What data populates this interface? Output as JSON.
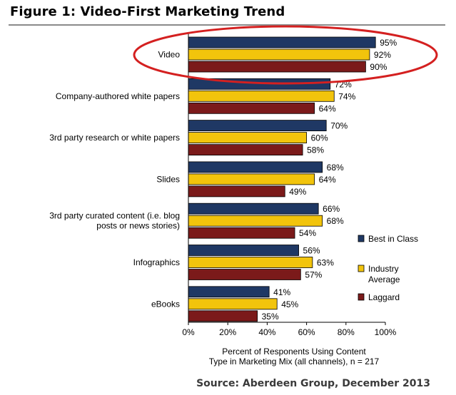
{
  "figure_title": "Figure 1: Video-First Marketing Trend",
  "source": "Source: Aberdeen Group, December 2013",
  "chart_data": {
    "type": "bar",
    "orientation": "horizontal",
    "categories": [
      "Video",
      "Company-authored white papers",
      "3rd party research or white papers",
      "Slides",
      "3rd party curated content (i.e. blog posts or news stories)",
      "Infographics",
      "eBooks"
    ],
    "series": [
      {
        "name": "Best in Class",
        "color": "#1f3864",
        "values": [
          95,
          72,
          70,
          68,
          66,
          56,
          41
        ]
      },
      {
        "name": "Industry Average",
        "color": "#f2c40c",
        "values": [
          92,
          74,
          60,
          64,
          68,
          63,
          45
        ]
      },
      {
        "name": "Laggard",
        "color": "#7b1a1a",
        "values": [
          90,
          64,
          58,
          49,
          54,
          57,
          35
        ]
      }
    ],
    "data_label_suffix": "%",
    "xlabel": "Percent of Responents Using Content Type in Marketing Mix (all channels), n = 217",
    "xlim": [
      0,
      100
    ],
    "xticks": [
      "0%",
      "20%",
      "40%",
      "60%",
      "80%",
      "100%"
    ],
    "grid": false,
    "legend_position": "right",
    "highlight": {
      "category": "Video",
      "shape": "ellipse",
      "color": "#d42020"
    }
  }
}
